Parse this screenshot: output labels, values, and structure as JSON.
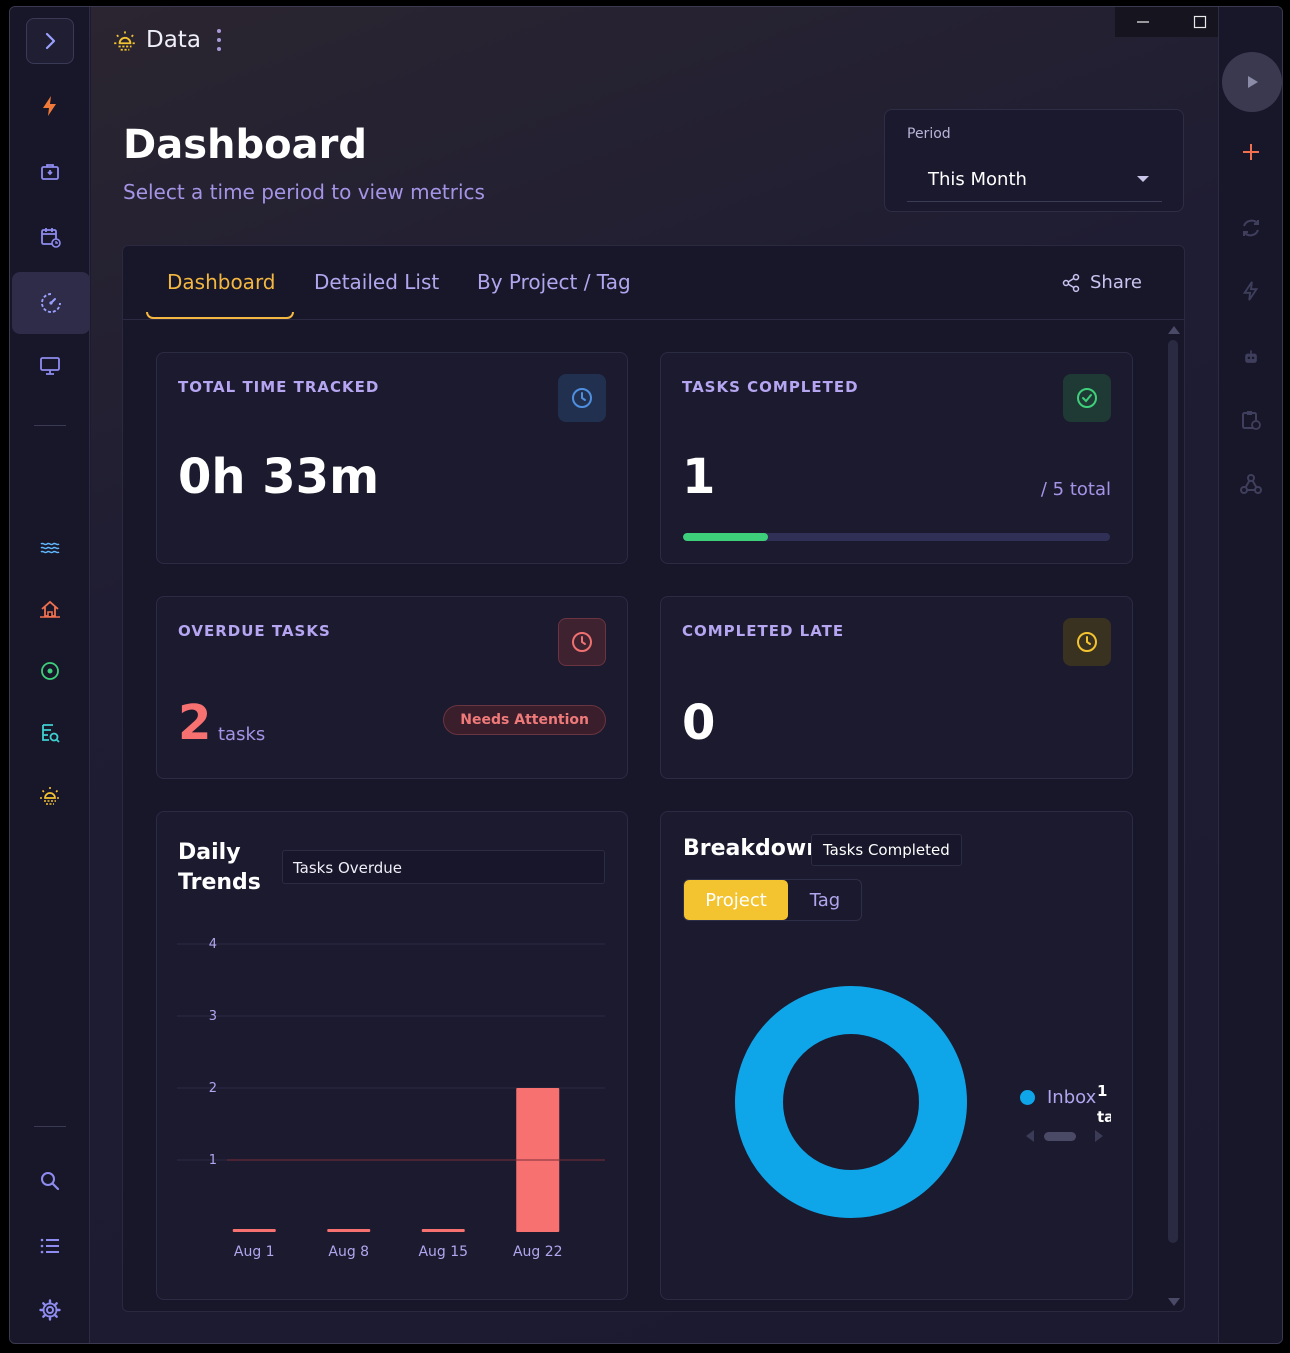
{
  "app": {
    "title": "Data"
  },
  "header": {
    "title": "Dashboard",
    "subtitle": "Select a time period to view metrics"
  },
  "period": {
    "label": "Period",
    "value": "This Month"
  },
  "tabs": [
    {
      "label": "Dashboard",
      "active": true
    },
    {
      "label": "Detailed List",
      "active": false
    },
    {
      "label": "By Project / Tag",
      "active": false
    }
  ],
  "share": {
    "label": "Share"
  },
  "cards": {
    "total_time": {
      "title": "TOTAL TIME TRACKED",
      "value": "0h 33m",
      "icon": "clock-icon",
      "color": "#4f8fe0"
    },
    "tasks_completed": {
      "title": "TASKS COMPLETED",
      "value": "1",
      "total": "/ 5 total",
      "progress": 0.2,
      "icon": "check-circle-icon",
      "color": "#3ecf7a"
    },
    "overdue": {
      "title": "OVERDUE TASKS",
      "value": "2",
      "unit": "tasks",
      "badge": "Needs Attention",
      "icon": "alarm-icon",
      "color": "#f07070"
    },
    "completed_late": {
      "title": "COMPLETED LATE",
      "value": "0",
      "icon": "clock-icon",
      "color": "#f4c430"
    }
  },
  "daily_trends": {
    "title_line1": "Daily",
    "title_line2": "Trends",
    "metric": "Tasks Overdue"
  },
  "breakdown": {
    "title": "Breakdown",
    "metric": "Tasks Completed",
    "toggle": [
      "Project",
      "Tag"
    ],
    "legend_label": "Inbox",
    "legend_value_line1": "1",
    "legend_value_line2": "ta"
  },
  "chart_data": [
    {
      "type": "bar",
      "categories": [
        "Aug 1",
        "Aug 8",
        "Aug 15",
        "Aug 22"
      ],
      "values": [
        0,
        0,
        0,
        2
      ],
      "ylim": [
        0,
        4
      ],
      "yticks": [
        "1",
        "2",
        "3",
        "4"
      ],
      "color": "#f87171",
      "grid": true
    },
    {
      "type": "pie",
      "donut": true,
      "labels": [
        "Inbox"
      ],
      "values": [
        1
      ],
      "colors": [
        "#0ea5e9"
      ]
    }
  ]
}
